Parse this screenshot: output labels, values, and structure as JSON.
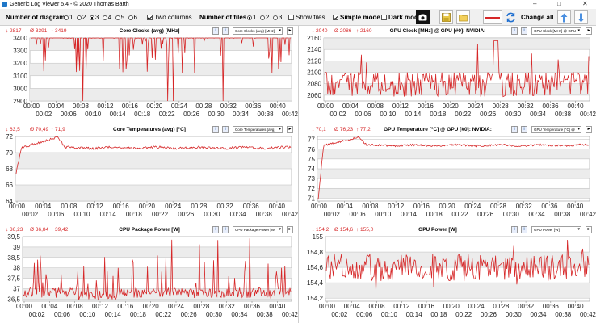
{
  "window": {
    "title": "Generic Log Viewer 5.4 - © 2020 Thomas Barth",
    "min": "–",
    "max": "□",
    "close": "✕"
  },
  "toolbar": {
    "num_diagrams_label": "Number of diagrams",
    "diagram_options": [
      "1",
      "2",
      "3",
      "4",
      "5",
      "6"
    ],
    "diagram_selected": "3",
    "two_columns_label": "Two columns",
    "two_columns_checked": true,
    "num_files_label": "Number of files",
    "file_options": [
      "1",
      "2",
      "3"
    ],
    "file_selected": "1",
    "show_files_label": "Show files",
    "simple_mode_label": "Simple mode",
    "simple_mode_checked": true,
    "dark_mode_label": "Dark mod",
    "change_all_label": "Change all",
    "icons": [
      "camera-icon",
      "save-icon",
      "folder-icon",
      "line-color-icon",
      "refresh-icon",
      "arrow-up-icon",
      "arrow-down-icon"
    ]
  },
  "panels": [
    {
      "title": "Core Clocks (avg) [MHz]",
      "min": "↓ 2817",
      "avg": "Ø 3391",
      "max": "↑ 3419",
      "selector": "Core Clocks (avg) [MHz]",
      "chart_data": {
        "type": "line",
        "title": "Core Clocks (avg) [MHz]",
        "ylim": [
          2900,
          3400
        ],
        "yticks": [
          "3400",
          "3300",
          "3200",
          "3100",
          "3000",
          "2900"
        ],
        "x_top": [
          "00:00",
          "00:04",
          "00:08",
          "00:12",
          "00:16",
          "00:20",
          "00:24",
          "00:28",
          "00:32",
          "00:36",
          "00:40"
        ],
        "x_bottom": [
          "00:02",
          "00:06",
          "00:10",
          "00:14",
          "00:18",
          "00:22",
          "00:26",
          "00:30",
          "00:34",
          "00:38",
          "00:42"
        ],
        "series": [
          {
            "name": "Core Clocks (avg)",
            "color": "#d62728",
            "profile": "spiky_down",
            "base": 3400,
            "noise": 5,
            "min": 2817,
            "avg": 3391,
            "max": 3419
          }
        ]
      }
    },
    {
      "title": "GPU Clock [MHz] @ GPU [#0]: NVIDIA:",
      "min": "↓ 2040",
      "avg": "Ø 2086",
      "max": "↑ 2160",
      "selector": "GPU Clock [MHz] @ GPU",
      "chart_data": {
        "type": "line",
        "title": "GPU Clock [MHz] @ GPU [#0]: NVIDIA:",
        "ylim": [
          2050,
          2160
        ],
        "yticks": [
          "2160",
          "2140",
          "2120",
          "2100",
          "2080",
          "2060"
        ],
        "x_top": [
          "00:00",
          "00:04",
          "00:08",
          "00:12",
          "00:16",
          "00:20",
          "00:24",
          "00:28",
          "00:32",
          "00:36",
          "00:40"
        ],
        "x_bottom": [
          "00:02",
          "00:06",
          "00:10",
          "00:14",
          "00:18",
          "00:22",
          "00:26",
          "00:30",
          "00:34",
          "00:38",
          "00:42"
        ],
        "series": [
          {
            "name": "GPU Clock",
            "color": "#d62728",
            "profile": "stepped",
            "base": 2085,
            "noise": 12,
            "min": 2040,
            "avg": 2086,
            "max": 2160
          }
        ]
      }
    },
    {
      "title": "Core Temperatures (avg) [°C]",
      "min": "↓ 63,5",
      "avg": "Ø 70,49",
      "max": "↑ 71,9",
      "selector": "Core Temperatures (avg)",
      "chart_data": {
        "type": "line",
        "title": "Core Temperatures (avg) [°C]",
        "ylim": [
          64,
          72
        ],
        "yticks": [
          "72",
          "70",
          "68",
          "66",
          "64"
        ],
        "x_top": [
          "00:00",
          "00:04",
          "00:08",
          "00:12",
          "00:16",
          "00:20",
          "00:24",
          "00:28",
          "00:32",
          "00:36",
          "00:40"
        ],
        "x_bottom": [
          "00:02",
          "00:06",
          "00:10",
          "00:14",
          "00:18",
          "00:22",
          "00:26",
          "00:30",
          "00:34",
          "00:38",
          "00:42"
        ],
        "series": [
          {
            "name": "Core Temperatures",
            "color": "#d62728",
            "profile": "warmup",
            "start": 67.5,
            "peak": 71.9,
            "base": 70.6,
            "noise": 0.15,
            "min": 63.5,
            "avg": 70.49,
            "max": 71.9
          }
        ]
      }
    },
    {
      "title": "GPU Temperature [°C] @ GPU [#0]: NVIDIA:",
      "min": "↓ 70,1",
      "avg": "Ø 76,23",
      "max": "↑ 77,2",
      "selector": "GPU Temperature [°C] @",
      "chart_data": {
        "type": "line",
        "title": "GPU Temperature [°C] @ GPU [#0]: NVIDIA:",
        "ylim": [
          70.7,
          77.3
        ],
        "yticks": [
          "77",
          "76",
          "75",
          "74",
          "73",
          "72",
          "71"
        ],
        "x_top": [
          "00:00",
          "00:04",
          "00:08",
          "00:12",
          "00:16",
          "00:20",
          "00:24",
          "00:28",
          "00:32",
          "00:36",
          "00:40"
        ],
        "x_bottom": [
          "00:02",
          "00:06",
          "00:10",
          "00:14",
          "00:18",
          "00:22",
          "00:26",
          "00:30",
          "00:34",
          "00:38",
          "00:42"
        ],
        "series": [
          {
            "name": "GPU Temperature",
            "color": "#d62728",
            "profile": "warmup",
            "start": 70.9,
            "peak": 77.2,
            "base": 76.4,
            "noise": 0.1,
            "min": 70.1,
            "avg": 76.23,
            "max": 77.2
          }
        ]
      }
    },
    {
      "title": "CPU Package Power [W]",
      "min": "↓ 36,23",
      "avg": "Ø 36,84",
      "max": "↑ 39,42",
      "selector": "CPU Package Power [W]",
      "chart_data": {
        "type": "line",
        "title": "CPU Package Power [W]",
        "ylim": [
          36.4,
          39.5
        ],
        "yticks": [
          "39,5",
          "39",
          "38,5",
          "38",
          "37,5",
          "37",
          "36,5"
        ],
        "x_top": [
          "00:00",
          "00:04",
          "00:08",
          "00:12",
          "00:16",
          "00:20",
          "00:24",
          "00:28",
          "00:32",
          "00:36",
          "00:40"
        ],
        "x_bottom": [
          "00:02",
          "00:06",
          "00:10",
          "00:14",
          "00:18",
          "00:22",
          "00:26",
          "00:30",
          "00:34",
          "00:38",
          "00:42"
        ],
        "series": [
          {
            "name": "CPU Package Power",
            "color": "#d62728",
            "profile": "spiky_up",
            "base": 36.8,
            "noise": 0.25,
            "min": 36.23,
            "avg": 36.84,
            "max": 39.42
          }
        ]
      }
    },
    {
      "title": "GPU Power [W]",
      "min": "↓ 154,2",
      "avg": "Ø 154,6",
      "max": "↑ 155,0",
      "selector": "GPU Power [W]",
      "chart_data": {
        "type": "line",
        "title": "GPU Power [W]",
        "ylim": [
          154.16,
          155.0
        ],
        "yticks": [
          "155",
          "154,8",
          "154,6",
          "154,4",
          "154,2"
        ],
        "x_top": [
          "00:00",
          "00:04",
          "00:08",
          "00:12",
          "00:16",
          "00:20",
          "00:24",
          "00:28",
          "00:32",
          "00:36",
          "00:40"
        ],
        "x_bottom": [
          "00:02",
          "00:06",
          "00:10",
          "00:14",
          "00:18",
          "00:22",
          "00:26",
          "00:30",
          "00:34",
          "00:38",
          "00:42"
        ],
        "series": [
          {
            "name": "GPU Power",
            "color": "#d62728",
            "profile": "noisy",
            "base": 154.6,
            "noise": 0.12,
            "min": 154.2,
            "avg": 154.6,
            "max": 155.0
          }
        ]
      }
    }
  ]
}
